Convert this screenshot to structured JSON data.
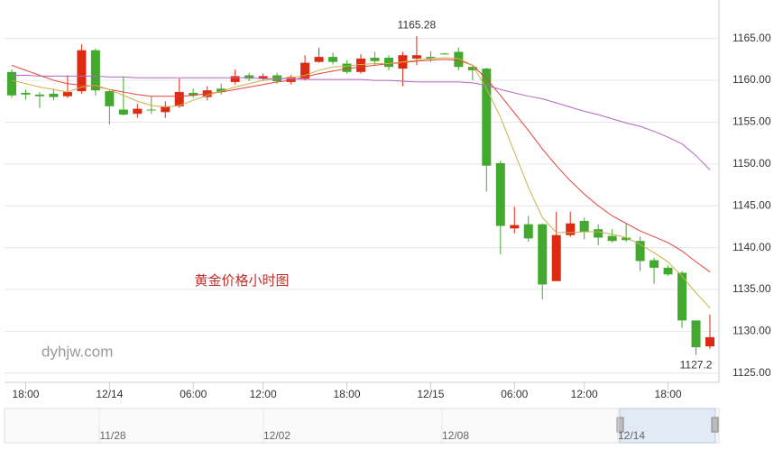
{
  "chart_data": {
    "type": "candlestick",
    "title": "黄金价格小时图",
    "watermark": "dyhjw.com",
    "categories": [
      null,
      "18:00",
      null,
      null,
      null,
      null,
      null,
      "12/14",
      null,
      null,
      null,
      null,
      null,
      "06:00",
      null,
      null,
      null,
      null,
      "12:00",
      null,
      null,
      null,
      null,
      null,
      "18:00",
      null,
      null,
      null,
      null,
      null,
      "12/15",
      null,
      null,
      null,
      null,
      null,
      "06:00",
      null,
      null,
      null,
      null,
      "12:00",
      null,
      null,
      null,
      null,
      null,
      "18:00",
      null,
      null,
      null
    ],
    "open": [
      1161.0,
      1158.5,
      1158.3,
      1158.4,
      1158.1,
      1158.7,
      1163.6,
      1158.7,
      1156.5,
      1156.0,
      1156.5,
      1156.2,
      1156.9,
      1158.5,
      1158.0,
      1159.0,
      1159.8,
      1160.6,
      1160.2,
      1160.6,
      1159.8,
      1160.2,
      1162.2,
      1162.8,
      1162.0,
      1161.0,
      1162.7,
      1162.7,
      1161.4,
      1162.6,
      1162.8,
      1163.2,
      1163.4,
      1161.6,
      1161.4,
      1150.1,
      1142.3,
      1142.8,
      1142.8,
      1136.0,
      1141.5,
      1143.2,
      1142.2,
      1141.4,
      1141.2,
      1140.8,
      1138.5,
      1137.6,
      1137.0,
      1131.3,
      1128.2
    ],
    "high": [
      1161.3,
      1158.9,
      1158.6,
      1159.0,
      1160.6,
      1164.3,
      1163.8,
      1158.9,
      1160.5,
      1157.2,
      1158.1,
      1157.5,
      1160.2,
      1159.0,
      1159.3,
      1159.6,
      1161.3,
      1160.9,
      1160.8,
      1160.9,
      1160.6,
      1163.0,
      1163.9,
      1163.3,
      1162.4,
      1163.1,
      1163.4,
      1163.0,
      1163.4,
      1165.28,
      1163.5,
      1163.3,
      1163.9,
      1161.9,
      1161.5,
      1150.4,
      1144.9,
      1143.8,
      1142.9,
      1144.3,
      1144.3,
      1143.6,
      1142.8,
      1142.2,
      1142.9,
      1141.3,
      1138.8,
      1137.9,
      1137.2,
      1131.3,
      1132.0
    ],
    "low": [
      1157.9,
      1157.7,
      1156.7,
      1157.6,
      1157.9,
      1158.4,
      1158.2,
      1154.7,
      1155.8,
      1155.5,
      1156.0,
      1155.5,
      1156.7,
      1157.9,
      1157.6,
      1158.3,
      1159.5,
      1159.9,
      1160.0,
      1159.6,
      1159.5,
      1160.0,
      1162.1,
      1161.9,
      1160.8,
      1160.8,
      1161.8,
      1161.2,
      1159.3,
      1161.8,
      1162.2,
      1163.1,
      1161.2,
      1160.0,
      1146.7,
      1139.2,
      1141.7,
      1140.7,
      1133.8,
      1136.0,
      1141.3,
      1141.0,
      1140.3,
      1140.6,
      1140.7,
      1137.2,
      1135.7,
      1136.6,
      1130.4,
      1127.2,
      1127.9
    ],
    "close": [
      1158.2,
      1158.3,
      1158.1,
      1158.0,
      1158.6,
      1163.6,
      1158.8,
      1156.9,
      1155.9,
      1156.6,
      1156.4,
      1156.9,
      1158.6,
      1158.2,
      1158.8,
      1158.6,
      1160.5,
      1160.2,
      1160.5,
      1159.9,
      1160.4,
      1162.1,
      1162.8,
      1162.2,
      1161.0,
      1162.6,
      1162.3,
      1161.6,
      1163.0,
      1163.0,
      1162.6,
      1163.1,
      1161.6,
      1161.2,
      1149.8,
      1142.6,
      1142.7,
      1141.1,
      1135.6,
      1141.5,
      1142.9,
      1141.9,
      1141.2,
      1140.8,
      1140.9,
      1138.4,
      1137.6,
      1136.8,
      1131.3,
      1128.1,
      1129.3
    ],
    "max_label": "1165.28",
    "min_label": "1127.2",
    "up_color": "#dd2a12",
    "down_color": "#43a82e",
    "lines": [
      {
        "color": "#e8413a",
        "values": [
          1161.8,
          1161.2,
          1160.6,
          1160.0,
          1159.6,
          1159.4,
          1159.3,
          1158.9,
          1158.6,
          1158.3,
          1158.1,
          1158.1,
          1158.1,
          1158.2,
          1158.4,
          1158.6,
          1158.9,
          1159.2,
          1159.5,
          1159.8,
          1160.0,
          1160.4,
          1160.8,
          1161.1,
          1161.4,
          1161.6,
          1161.8,
          1162.0,
          1162.1,
          1162.3,
          1162.4,
          1162.5,
          1162.4,
          1161.8,
          1160.2,
          1158.2,
          1156.1,
          1154.0,
          1151.8,
          1149.8,
          1148.0,
          1146.4,
          1145.0,
          1143.8,
          1142.9,
          1142.0,
          1141.3,
          1140.6,
          1139.6,
          1138.3,
          1137.1
        ]
      },
      {
        "color": "#c9b24a",
        "values": [
          1160.0,
          1159.6,
          1159.2,
          1158.9,
          1158.6,
          1159.2,
          1159.4,
          1158.9,
          1158.2,
          1157.5,
          1157.0,
          1156.8,
          1157.0,
          1157.6,
          1158.2,
          1158.7,
          1159.2,
          1159.6,
          1160.0,
          1160.2,
          1160.3,
          1160.6,
          1161.2,
          1161.6,
          1161.7,
          1161.9,
          1162.0,
          1162.0,
          1162.2,
          1162.4,
          1162.6,
          1162.7,
          1162.6,
          1161.8,
          1159.0,
          1155.6,
          1151.4,
          1147.2,
          1143.6,
          1141.8,
          1141.8,
          1141.9,
          1141.9,
          1141.6,
          1141.2,
          1140.4,
          1139.4,
          1138.3,
          1136.6,
          1134.6,
          1132.8
        ]
      },
      {
        "color": "#b565c4",
        "values": [
          1160.6,
          1160.6,
          1160.5,
          1160.5,
          1160.5,
          1160.5,
          1160.5,
          1160.4,
          1160.4,
          1160.3,
          1160.3,
          1160.3,
          1160.3,
          1160.3,
          1160.3,
          1160.3,
          1160.3,
          1160.3,
          1160.2,
          1160.2,
          1160.2,
          1160.1,
          1160.1,
          1160.1,
          1160.1,
          1160.1,
          1160.0,
          1160.0,
          1159.9,
          1159.8,
          1159.8,
          1159.8,
          1159.8,
          1159.7,
          1159.4,
          1158.9,
          1158.5,
          1158.1,
          1157.8,
          1157.3,
          1156.8,
          1156.3,
          1155.9,
          1155.4,
          1154.9,
          1154.5,
          1153.9,
          1153.2,
          1152.4,
          1151.0,
          1149.3
        ]
      }
    ],
    "ylim": [
      1123.9,
      1169.6
    ],
    "yticks": [
      {
        "value": 1125,
        "label": "1125.00"
      },
      {
        "value": 1130,
        "label": "1130.00"
      },
      {
        "value": 1135,
        "label": "1135.00"
      },
      {
        "value": 1140,
        "label": "1140.00"
      },
      {
        "value": 1145,
        "label": "1145.00"
      },
      {
        "value": 1150,
        "label": "1150.00"
      },
      {
        "value": 1155,
        "label": "1155.00"
      },
      {
        "value": 1160,
        "label": "1160.00"
      },
      {
        "value": 1165,
        "label": "1165.00"
      }
    ],
    "grid": true,
    "navigator": {
      "labels": [
        "11/28",
        "12/02",
        "12/08",
        "12/14"
      ]
    }
  }
}
